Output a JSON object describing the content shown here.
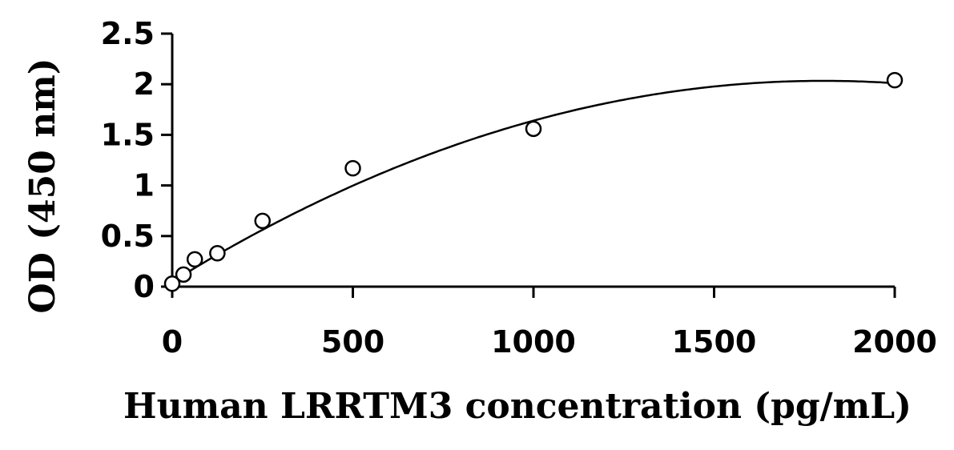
{
  "chart_data": {
    "type": "scatter",
    "title": "",
    "xlabel": "Human LRRTM3 concentration (pg/mL)",
    "ylabel": "OD (450 nm)",
    "xlim": [
      0,
      2000
    ],
    "ylim": [
      0,
      2.5
    ],
    "x_ticks": [
      0,
      500,
      1000,
      1500,
      2000
    ],
    "x_tick_labels": [
      "0",
      "500",
      "1000",
      "1500",
      "2000"
    ],
    "y_ticks": [
      0,
      0.5,
      1,
      1.5,
      2,
      2.5
    ],
    "y_tick_labels": [
      "0",
      "0.5",
      "1",
      "1.5",
      "2",
      "2.5"
    ],
    "grid": false,
    "legend": "none",
    "series": [
      {
        "x": [
          0,
          31.25,
          62.5,
          125,
          250,
          500,
          1000,
          2000
        ],
        "y": [
          0.03,
          0.12,
          0.27,
          0.33,
          0.65,
          1.17,
          1.56,
          2.04
        ],
        "marker": "open-circle"
      }
    ],
    "fit": {
      "type": "polynomial-2",
      "coefficients": [
        0.05,
        0.0022,
        -6.1e-07
      ]
    },
    "colors": {
      "axis": "#000000",
      "marker_edge": "#000000",
      "marker_fill": "#ffffff"
    }
  }
}
